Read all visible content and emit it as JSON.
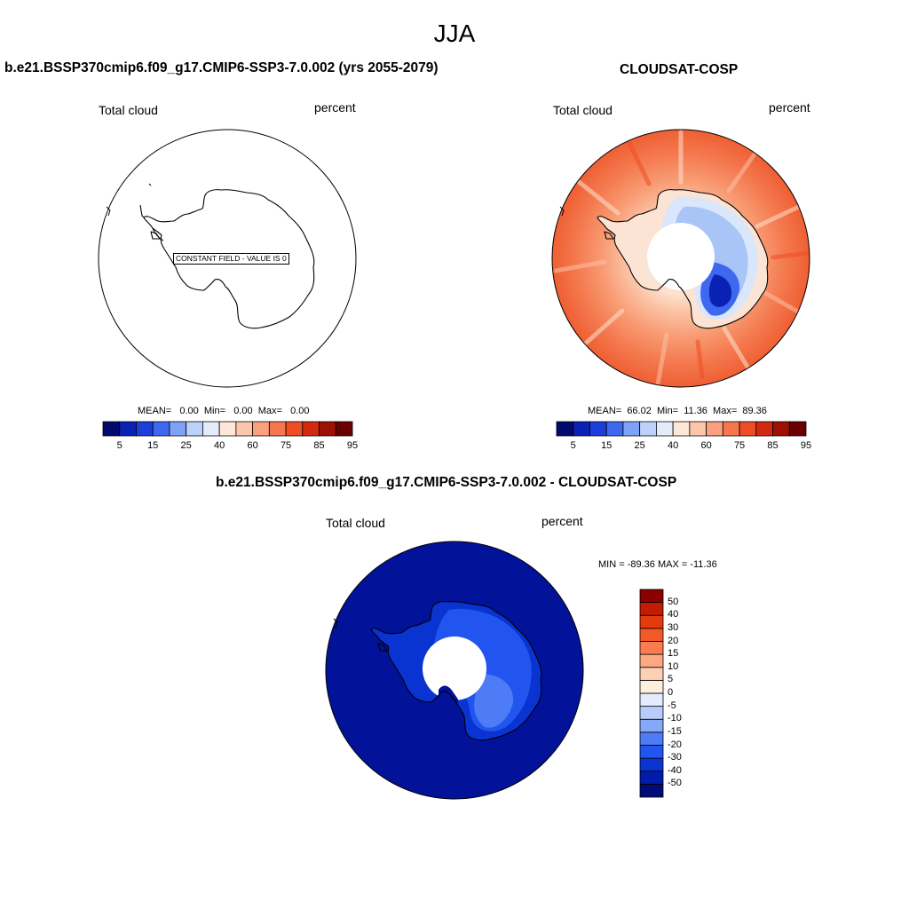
{
  "title": "JJA",
  "panels": {
    "model": {
      "title": "b.e21.BSSP370cmip6.f09_g17.CMIP6-SSP3-7.0.002 (yrs 2055-2079)",
      "variable": "Total cloud",
      "units": "percent",
      "annotation": "CONSTANT FIELD - VALUE IS 0",
      "stats": "MEAN=   0.00  Min=   0.00  Max=   0.00",
      "stats_values": {
        "mean": 0.0,
        "min": 0.0,
        "max": 0.0
      }
    },
    "obs": {
      "title": "CLOUDSAT-COSP",
      "variable": "Total cloud",
      "units": "percent",
      "stats": "MEAN=  66.02  Min=  11.36  Max=  89.36",
      "stats_values": {
        "mean": 66.02,
        "min": 11.36,
        "max": 89.36
      }
    },
    "diff": {
      "title": "b.e21.BSSP370cmip6.f09_g17.CMIP6-SSP3-7.0.002 - CLOUDSAT-COSP",
      "variable": "Total cloud",
      "units": "percent",
      "minmax": "MIN = -89.36 MAX = -11.36",
      "stats_values": {
        "min": -89.36,
        "max": -11.36
      }
    }
  },
  "colorbars": {
    "absolute": {
      "colors": [
        "#020a6e",
        "#0a22b4",
        "#1c3fdc",
        "#3e68f0",
        "#7ea2f6",
        "#bcd1fa",
        "#e4ecfc",
        "#fde8d8",
        "#fcc6aa",
        "#fba07e",
        "#f77650",
        "#ee4d25",
        "#d22a10",
        "#9e1004",
        "#6a0000"
      ],
      "labels": [
        "5",
        "15",
        "25",
        "40",
        "60",
        "75",
        "85",
        "95"
      ]
    },
    "difference": {
      "colors": [
        "#000a78",
        "#001ca8",
        "#0a34d2",
        "#2255f0",
        "#4d7cf6",
        "#85a8f8",
        "#b8cdfa",
        "#e2ecfc",
        "#fdeedd",
        "#fdd0b4",
        "#fca982",
        "#fa7d52",
        "#f35928",
        "#e43a0c",
        "#c21c04",
        "#8a0000"
      ],
      "labels": [
        "50",
        "40",
        "30",
        "20",
        "15",
        "10",
        "5",
        "0",
        "-5",
        "-10",
        "-15",
        "-20",
        "-30",
        "-40",
        "-50"
      ]
    }
  }
}
